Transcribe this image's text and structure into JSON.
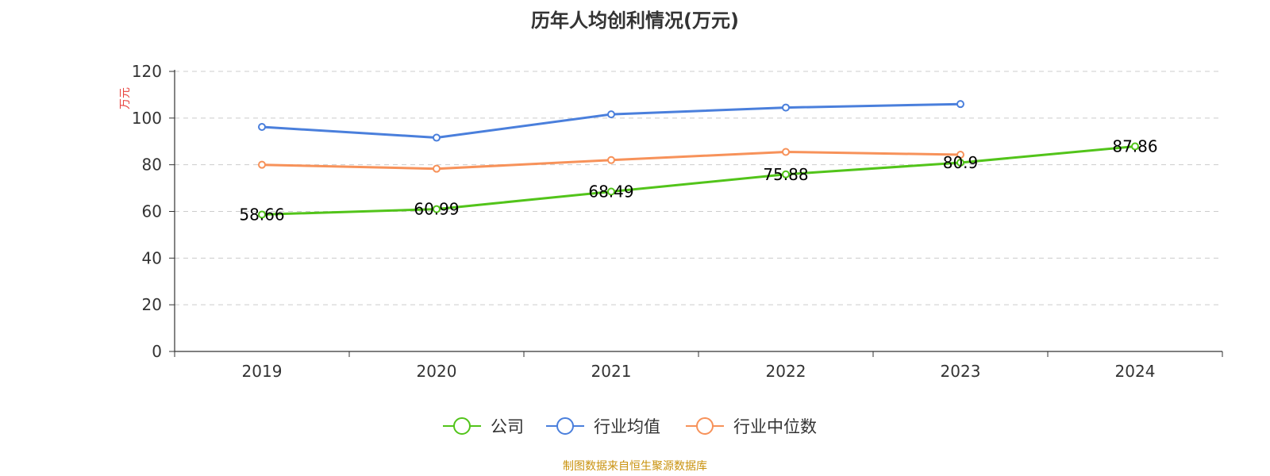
{
  "chart_data": {
    "type": "line",
    "title": "历年人均创利情况(万元)",
    "ylabel": "万元",
    "categories": [
      "2019",
      "2020",
      "2021",
      "2022",
      "2023",
      "2024"
    ],
    "ylim": [
      0,
      120
    ],
    "yticks": [
      0,
      20,
      40,
      60,
      80,
      100,
      120
    ],
    "grid": true,
    "legend_position": "bottom",
    "series": [
      {
        "name": "公司",
        "color": "#52c41a",
        "values": [
          58.66,
          60.99,
          68.49,
          75.88,
          80.9,
          87.86
        ],
        "labels": [
          "58.66",
          "60.99",
          "68.49",
          "75.88",
          "80.9",
          "87.86"
        ]
      },
      {
        "name": "行业均值",
        "color": "#4a7fdc",
        "values": [
          96.2,
          91.6,
          101.6,
          104.5,
          106.0,
          null
        ]
      },
      {
        "name": "行业中位数",
        "color": "#f7925a",
        "values": [
          80.0,
          78.3,
          82.0,
          85.5,
          84.3,
          null
        ]
      }
    ]
  },
  "source": "制图数据来自恒生聚源数据库",
  "colors": {
    "ylabel": "#e8423d",
    "source": "#c9920e",
    "axis": "#333333",
    "grid": "#cccccc"
  }
}
